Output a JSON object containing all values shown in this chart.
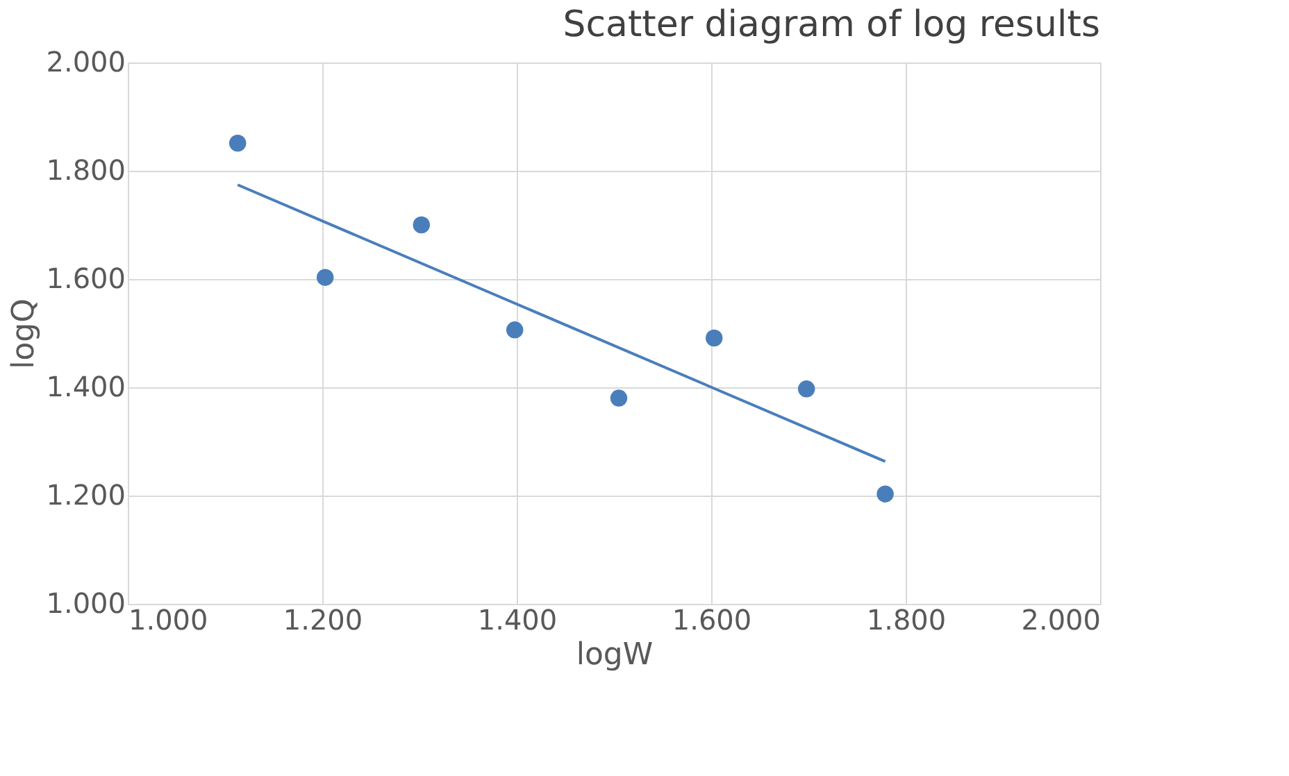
{
  "chart_data": {
    "type": "scatter",
    "title": "Scatter diagram of log results",
    "xlabel": "logW",
    "ylabel": "logQ",
    "series": [
      {
        "marker": "circle",
        "color": "#4a7ebb",
        "x": [
          1.113,
          1.203,
          1.302,
          1.398,
          1.505,
          1.603,
          1.698,
          1.779
        ],
        "values": [
          1.851,
          1.603,
          1.7,
          1.506,
          1.38,
          1.491,
          1.397,
          1.203
        ]
      },
      {
        "type": "line",
        "marker": "none",
        "color": "#4a7ebb",
        "x": [
          1.113,
          1.779
        ],
        "values": [
          1.774,
          1.263
        ]
      }
    ],
    "xlim": [
      1.0,
      2.0
    ],
    "ylim": [
      1.0,
      2.0
    ],
    "xticks": [
      {
        "value": 1.0,
        "label": "1.000"
      },
      {
        "value": 1.2,
        "label": "1.200"
      },
      {
        "value": 1.4,
        "label": "1.400"
      },
      {
        "value": 1.6,
        "label": "1.600"
      },
      {
        "value": 1.8,
        "label": "1.800"
      },
      {
        "value": 2.0,
        "label": "2.000"
      }
    ],
    "yticks": [
      {
        "value": 1.0,
        "label": "1.000"
      },
      {
        "value": 1.2,
        "label": "1.200"
      },
      {
        "value": 1.4,
        "label": "1.400"
      },
      {
        "value": 1.6,
        "label": "1.600"
      },
      {
        "value": 1.8,
        "label": "1.800"
      },
      {
        "value": 2.0,
        "label": "2.000"
      }
    ],
    "grid": true
  }
}
